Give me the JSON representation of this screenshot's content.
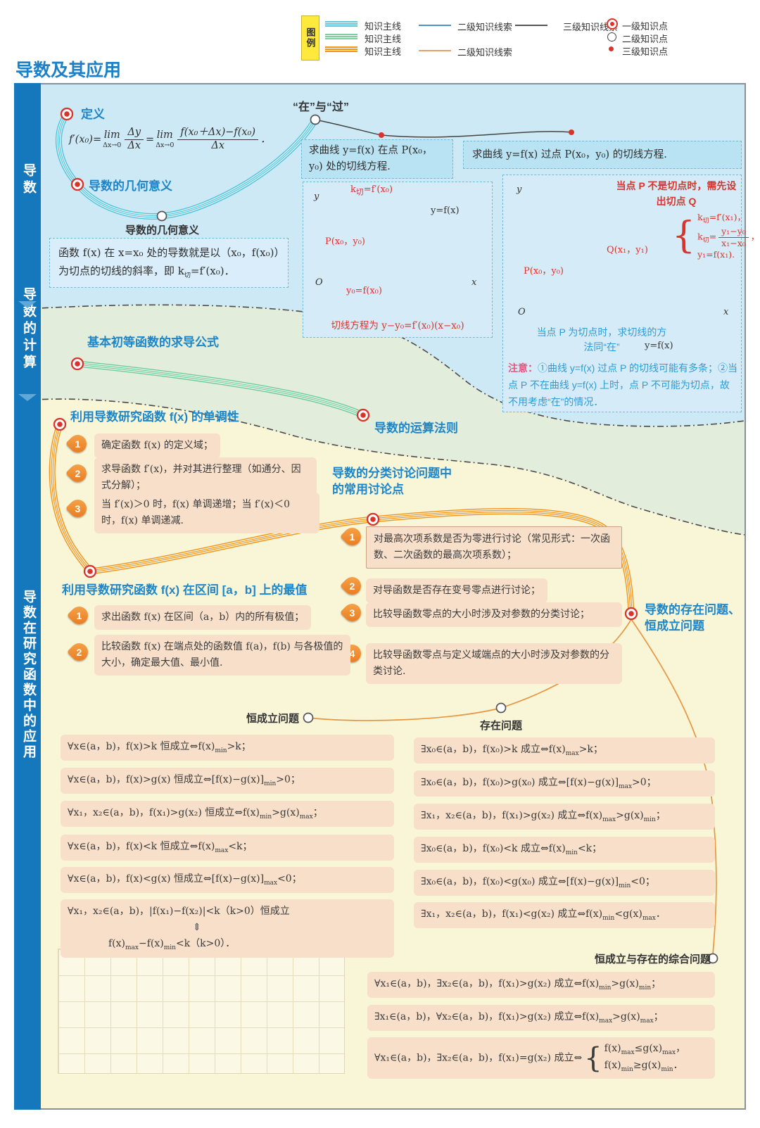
{
  "legend": {
    "box_label": "图例",
    "mainlines": [
      {
        "color": "#5bc8de",
        "label": "知识主线"
      },
      {
        "color": "#7ecf9f",
        "label": "知识主线"
      },
      {
        "color": "#f0941c",
        "label": "知识主线"
      }
    ],
    "secondary": [
      {
        "color": "#4a93c4",
        "label": "二级知识线索"
      },
      {
        "color": "#e8a06a",
        "label": "二级知识线索"
      }
    ],
    "tertiary": {
      "color": "#555555",
      "label": "三级知识线索"
    },
    "points": [
      {
        "type": "level1",
        "label": "一级知识点"
      },
      {
        "type": "level2",
        "label": "二级知识点"
      },
      {
        "type": "level3",
        "label": "三级知识点"
      }
    ]
  },
  "title": "导数及其应用",
  "sidebar": [
    "导数",
    "导数的计算",
    "导数在研究函数中的应用"
  ],
  "daoshu": {
    "dingyi": "定义",
    "dingyi_formula": "f′(x₀)=<span class='lm'>lim<i>Δx→0</i></span><span class='fr'><span>Δy</span><span>Δx</span></span>=<span class='lm'>lim<i>Δx→0</i></span><span class='fr'><span>f(x₀＋Δx)−f(x₀)</span><span>Δx</span></span>．",
    "jihe": "导数的几何意义",
    "jihe_node": "导数的几何意义",
    "jihe_box": "函数 f(x) 在 x=x₀ 处的导数就是以（x₀，f(x₀)）为切点的切线的斜率，即 k<sub>切</sub>=f′(x₀)．",
    "zai_guo": "“在”与“过”",
    "zai": {
      "header": "求曲线 y=f(x) 在点 P(x₀，y₀) 处的切线方程.",
      "k_label": "k<sub>切</sub>=f′(x₀)",
      "p_label": "P(x₀，y₀)",
      "y0_label": "y₀=f(x₀)",
      "curve_label": "y=f(x)",
      "axis_y": "y",
      "axis_x": "x",
      "origin": "O",
      "eq": "切线方程为 y−y₀=f′(x₀)(x−x₀)"
    },
    "guo": {
      "header": "求曲线 y=f(x) 过点 P(x₀，y₀) 的切线方程.",
      "note_top": "当点 P 不是切点时，需先设出切点 Q",
      "sys": [
        "k<sub>切</sub>=f′(x₁)，",
        "k<sub>切</sub>=<span class='fr'><span>y₁−y₀</span><span>x₁−x₀</span></span>，",
        "y₁=f(x₁)."
      ],
      "p_label": "P(x₀，y₀)",
      "q_label": "Q(x₁，y₁)",
      "curve_label": "y=f(x)",
      "axis_y": "y",
      "axis_x": "x",
      "origin": "O",
      "blue_note": "当点 P 为切点时，求切线的方法同“在”",
      "notice_head": "注意：",
      "notice_body": "①曲线 y=f(x) 过点 P 的切线可能有多条；②当点 P 不在曲线 y=f(x) 上时，点 P 不可能为切点，故不用考虑“在”的情况．"
    }
  },
  "jisuan": {
    "qiudao": "基本初等函数的求导公式",
    "yunsuan": "导数的运算法则"
  },
  "yingyong": {
    "dandiaoxing": {
      "title": "利用导数研究函数 f(x) 的单调性",
      "steps": [
        {
          "num": "1",
          "text": "确定函数 f(x) 的定义域；"
        },
        {
          "num": "2",
          "text": "求导函数 f′(x)，并对其进行整理（如通分、因式分解）；"
        },
        {
          "num": "3",
          "text": "当 f′(x)＞0 时，f(x) 单调递增；当 f′(x)＜0 时，f(x) 单调递减."
        }
      ]
    },
    "fenlei": {
      "title": "导数的分类讨论问题中的常用讨论点",
      "items": [
        {
          "num": "1",
          "text": "对最高次项系数是否为零进行讨论（常见形式：一次函数、二次函数的最高次项系数）；"
        },
        {
          "num": "2",
          "text": "对导函数是否存在变号零点进行讨论；"
        },
        {
          "num": "3",
          "text": "比较导函数零点的大小时涉及对参数的分类讨论；"
        },
        {
          "num": "4",
          "text": "比较导函数零点与定义域端点的大小时涉及对参数的分类讨论."
        }
      ]
    },
    "zuizhi": {
      "title": "利用导数研究函数 f(x) 在区间 [a，b] 上的最值",
      "steps": [
        {
          "num": "1",
          "text": "求出函数 f(x) 在区间（a，b）内的所有极值；"
        },
        {
          "num": "2",
          "text": "比较函数 f(x) 在端点处的函数值 f(a)，f(b) 与各极值的大小，确定最大值、最小值."
        }
      ]
    },
    "cunzai_heng": "导数的存在问题、恒成立问题",
    "always": {
      "label": "恒成立问题",
      "items": [
        "∀x∈(a，b)，f(x)&gt;k 恒成立⇔f(x)<sub>min</sub>&gt;k；",
        "∀x∈(a，b)，f(x)&gt;g(x) 恒成立⇔[f(x)−g(x)]<sub>min</sub>&gt;0；",
        "∀x₁，x₂∈(a，b)，f(x₁)&gt;g(x₂) 恒成立⇔f(x)<sub>min</sub>&gt;g(x)<sub>max</sub>；",
        "∀x∈(a，b)，f(x)&lt;k 恒成立⇔f(x)<sub>max</sub>&lt;k；",
        "∀x∈(a，b)，f(x)&lt;g(x) 恒成立⇔[f(x)−g(x)]<sub>max</sub>&lt;0；",
        "∀x₁，x₂∈(a，b)，|f(x₁)−f(x₂)|&lt;k（k&gt;0）恒成立<br><span style='margin-left:178px'>⇕</span><br><span style='margin-left:58px'>f(x)<sub>max</sub>−f(x)<sub>min</sub>&lt;k（k&gt;0）．</span>"
      ]
    },
    "exists": {
      "label": "存在问题",
      "items": [
        "∃x₀∈(a，b)，f(x₀)&gt;k 成立⇔f(x)<sub>max</sub>&gt;k；",
        "∃x₀∈(a，b)，f(x₀)&gt;g(x₀) 成立⇔[f(x)−g(x)]<sub>max</sub>&gt;0；",
        "∃x₁，x₂∈(a，b)，f(x₁)&gt;g(x₂) 成立⇔f(x)<sub>max</sub>&gt;g(x)<sub>min</sub>；",
        "∃x₀∈(a，b)，f(x₀)&lt;k 成立⇔f(x)<sub>min</sub>&lt;k；",
        "∃x₀∈(a，b)，f(x₀)&lt;g(x₀) 成立⇔[f(x)−g(x)]<sub>min</sub>&lt;0；",
        "∃x₁，x₂∈(a，b)，f(x₁)&lt;g(x₂) 成立⇔f(x)<sub>min</sub>&lt;g(x)<sub>max</sub>．"
      ]
    },
    "combined": {
      "label": "恒成立与存在的综合问题",
      "items": [
        "∀x₁∈(a，b)，∃x₂∈(a，b)，f(x₁)&gt;g(x₂) 成立⇔f(x)<sub>min</sub>&gt;g(x)<sub>min</sub>；",
        "∃x₁∈(a，b)，∀x₂∈(a，b)，f(x₁)&gt;g(x₂) 成立⇔f(x)<sub>max</sub>&gt;g(x)<sub>max</sub>；",
        "∀x₁∈(a，b)，∃x₂∈(a，b)，f(x₁)=g(x₂) 成立⇔<span class='cases'><span class='cbr'>{</span><span class='cl'>f(x)<sub>max</sub>≤g(x)<sub>max</sub>，<br>f(x)<sub>min</sub>≥g(x)<sub>min</sub>．</span></span>"
      ]
    }
  }
}
